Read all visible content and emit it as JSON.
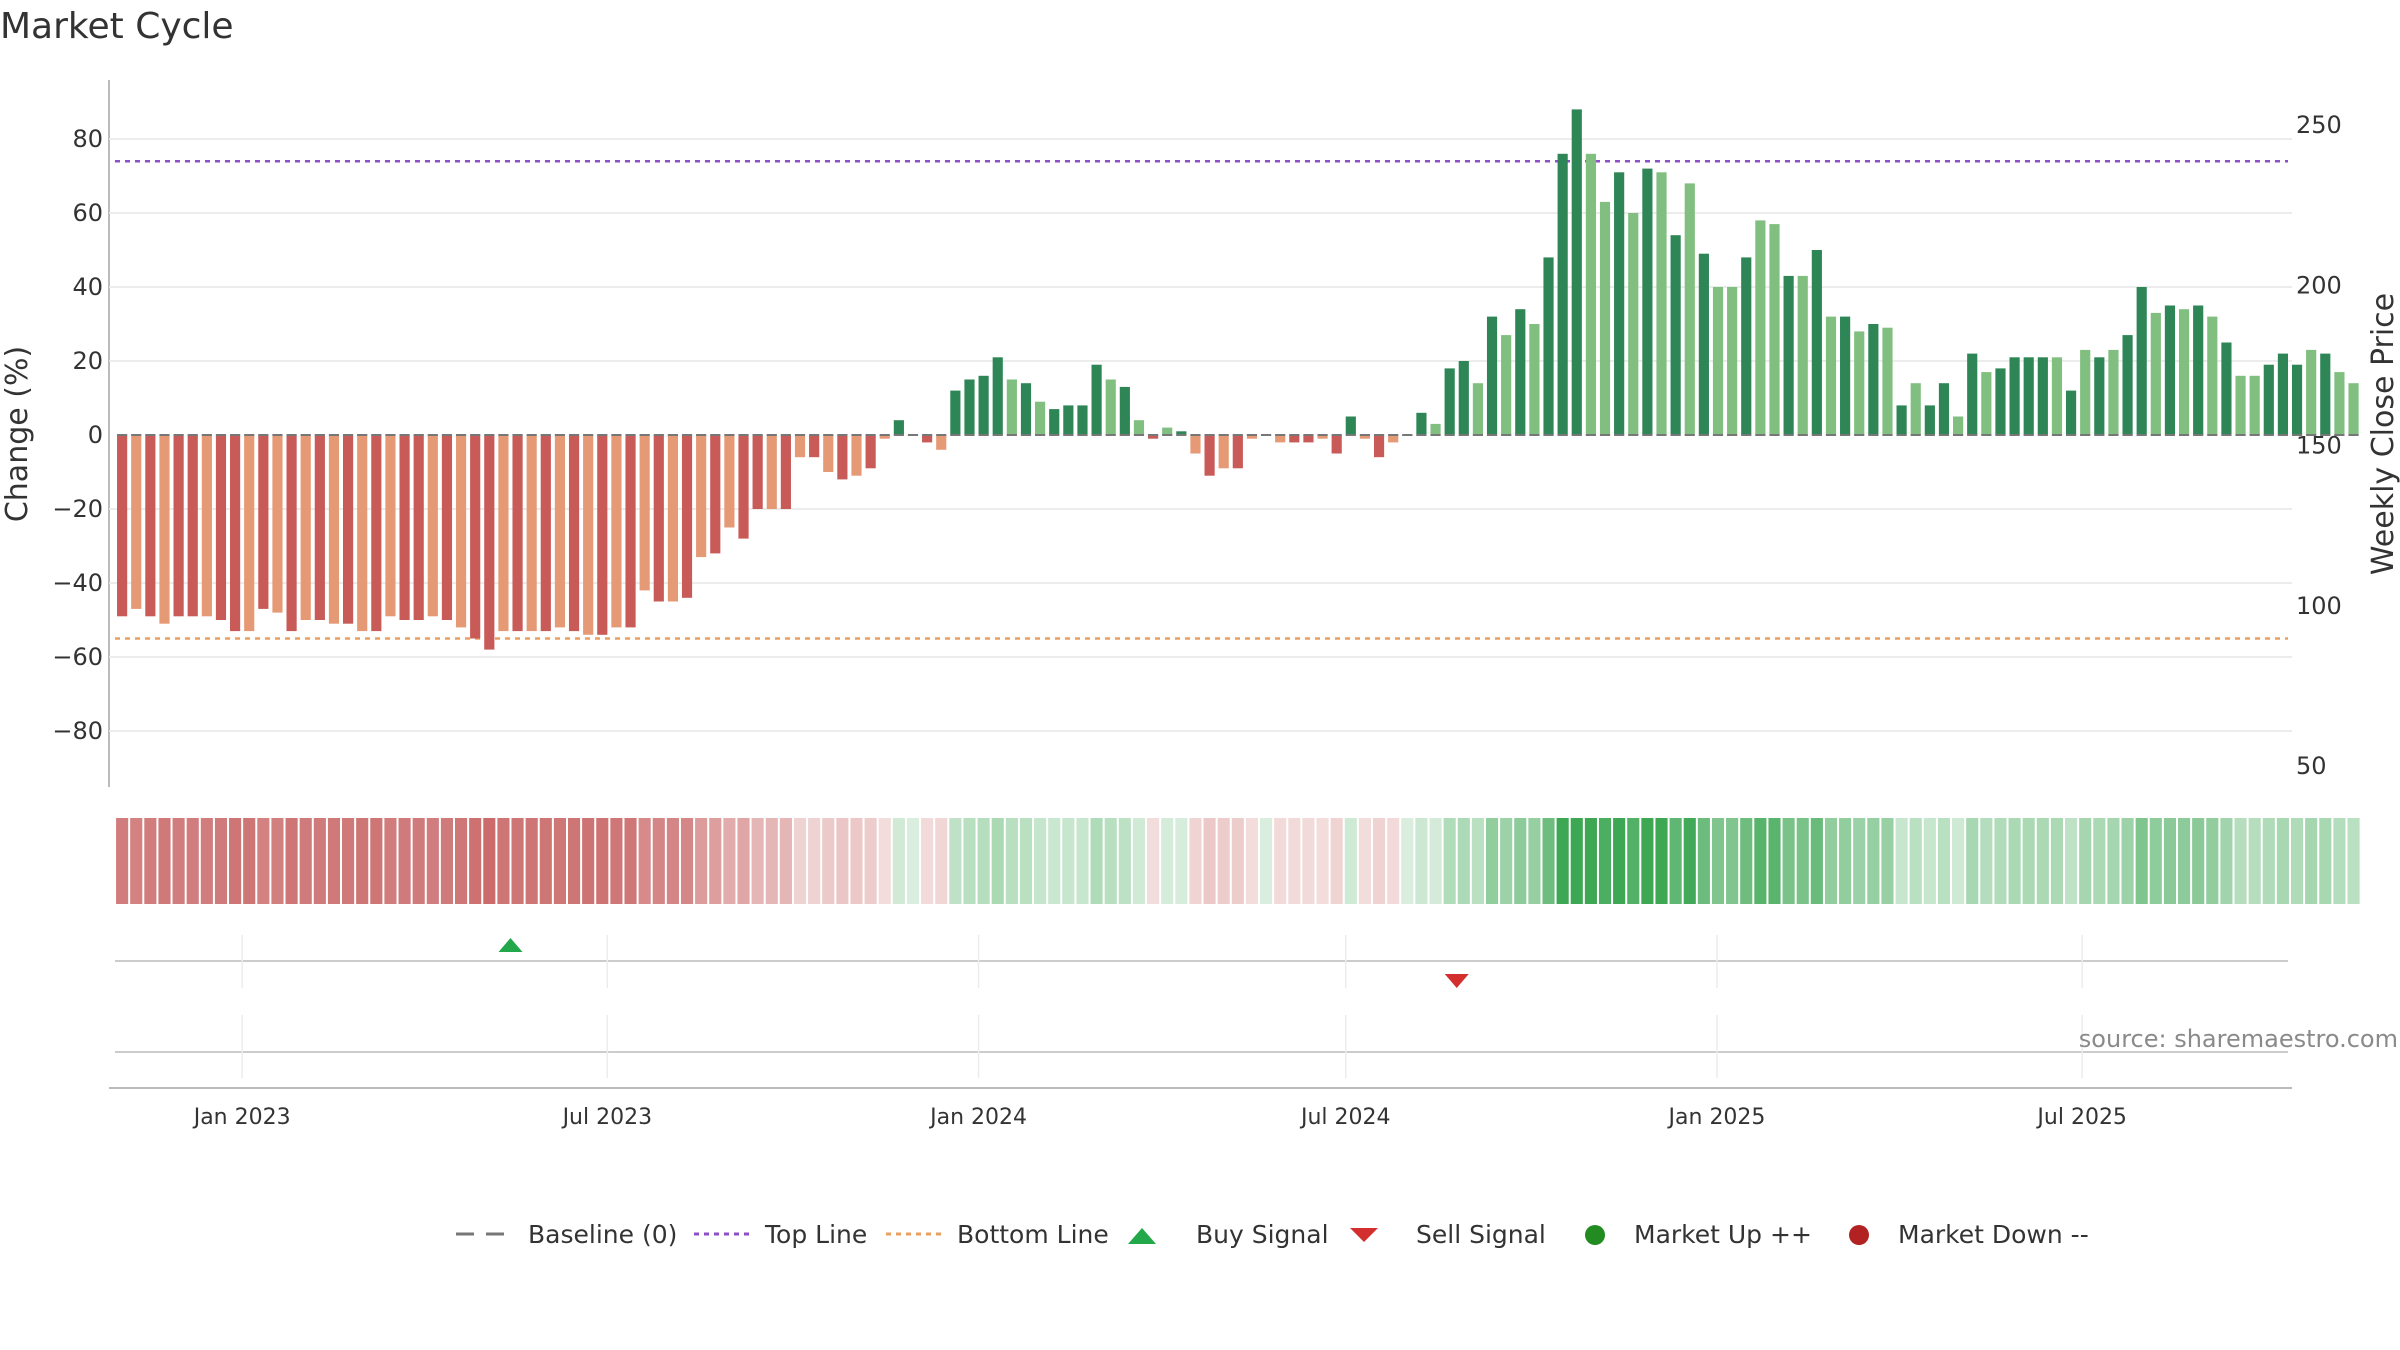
{
  "title": "Market Cycle",
  "source": "source: sharemaestro.com",
  "colors": {
    "up_dark": "#2e8656",
    "up_light": "#80bf80",
    "down_dark": "#c85a57",
    "down_light": "#e59a75",
    "top_line": "#8f4fc7",
    "bottom_line": "#e8a060",
    "buy": "#22a84a",
    "sell": "#d32f2f",
    "market_up": "#228b22",
    "market_down": "#b22222"
  },
  "legend": {
    "baseline": "Baseline (0)",
    "top": "Top Line",
    "bottom": "Bottom Line",
    "buy": "Buy Signal",
    "sell": "Sell Signal",
    "market_up": "Market Up ++",
    "market_down": "Market Down --"
  },
  "chart_data": {
    "type": "bar",
    "title": "Market Cycle",
    "ylabel": "Change (%)",
    "y2label": "Weekly Close Price",
    "ylim": [
      -95,
      95
    ],
    "y2lim": [
      50,
      260
    ],
    "yticks": [
      80,
      60,
      40,
      20,
      0,
      -20,
      -40,
      -60,
      -80
    ],
    "yticks_labels": [
      "80",
      "60",
      "40",
      "20",
      "0",
      "−20",
      "−40",
      "−60",
      "−80"
    ],
    "y2ticks": [
      250,
      200,
      150,
      100,
      50
    ],
    "x_start": "2022-10-30",
    "x_interval": "weekly",
    "x_range": [
      "2022-10-27",
      "2025-10-13"
    ],
    "xticks": [
      {
        "date": "2023-01-01",
        "label": "Jan 2023"
      },
      {
        "date": "2023-07-01",
        "label": "Jul 2023"
      },
      {
        "date": "2024-01-01",
        "label": "Jan 2024"
      },
      {
        "date": "2024-07-01",
        "label": "Jul 2024"
      },
      {
        "date": "2025-01-01",
        "label": "Jan 2025"
      },
      {
        "date": "2025-07-01",
        "label": "Jul 2025"
      }
    ],
    "top_line": 74,
    "bottom_line": -55,
    "baseline": 0,
    "values": [
      -49,
      -47,
      -49,
      -51,
      -49,
      -49,
      -49,
      -50,
      -53,
      -53,
      -47,
      -48,
      -53,
      -50,
      -50,
      -51,
      -51,
      -53,
      -53,
      -49,
      -50,
      -50,
      -49,
      -50,
      -52,
      -55,
      -58,
      -53,
      -53,
      -53,
      -53,
      -52,
      -53,
      -54,
      -54,
      -52,
      -52,
      -42,
      -45,
      -45,
      -44,
      -33,
      -32,
      -25,
      -28,
      -20,
      -20,
      -20,
      -6,
      -6,
      -10,
      -12,
      -11,
      -9,
      -1,
      4,
      0,
      -2,
      -4,
      12,
      15,
      16,
      21,
      15,
      14,
      9,
      7,
      8,
      8,
      19,
      15,
      13,
      4,
      -1,
      2,
      1,
      -5,
      -11,
      -9,
      -9,
      -1,
      0,
      -2,
      -2,
      -2,
      -1,
      -5,
      5,
      -1,
      -6,
      -2,
      0,
      6,
      3,
      18,
      20,
      14,
      32,
      27,
      34,
      30,
      48,
      76,
      88,
      76,
      63,
      71,
      60,
      72,
      71,
      54,
      68,
      49,
      40,
      40,
      48,
      58,
      57,
      43,
      43,
      50,
      32,
      32,
      28,
      30,
      29,
      8,
      14,
      8,
      14,
      5,
      22,
      17,
      18,
      21,
      21,
      21,
      21,
      12,
      23,
      21,
      23,
      27,
      40,
      33,
      35,
      34,
      35,
      32,
      25,
      16,
      16,
      19,
      22,
      19,
      23,
      22,
      17,
      14
    ],
    "shade": [
      2,
      1,
      2,
      1,
      2,
      2,
      1,
      2,
      2,
      1,
      2,
      1,
      2,
      1,
      2,
      1,
      2,
      1,
      2,
      1,
      2,
      2,
      1,
      2,
      1,
      2,
      2,
      1,
      2,
      1,
      2,
      1,
      2,
      1,
      2,
      1,
      2,
      1,
      2,
      1,
      2,
      1,
      2,
      1,
      2,
      2,
      1,
      2,
      1,
      2,
      1,
      2,
      1,
      2,
      1,
      2,
      1,
      2,
      1,
      2,
      2,
      2,
      2,
      1,
      2,
      1,
      2,
      2,
      2,
      2,
      1,
      2,
      1,
      2,
      1,
      2,
      1,
      2,
      1,
      2,
      1,
      2,
      1,
      2,
      2,
      1,
      2,
      2,
      1,
      2,
      1,
      2,
      2,
      1,
      2,
      2,
      1,
      2,
      1,
      2,
      1,
      2,
      2,
      2,
      1,
      1,
      2,
      1,
      2,
      1,
      2,
      1,
      2,
      1,
      1,
      2,
      1,
      1,
      2,
      1,
      2,
      1,
      2,
      1,
      2,
      1,
      2,
      1,
      2,
      2,
      1,
      2,
      1,
      2,
      2,
      2,
      2,
      1,
      2,
      1,
      2,
      1,
      2,
      2,
      1,
      2,
      1,
      2,
      1,
      2,
      1,
      1,
      2,
      2,
      2,
      1,
      2,
      1,
      1
    ],
    "signals": [
      {
        "type": "buy",
        "date": "2023-05-14"
      },
      {
        "type": "sell",
        "date": "2024-08-25"
      }
    ]
  }
}
